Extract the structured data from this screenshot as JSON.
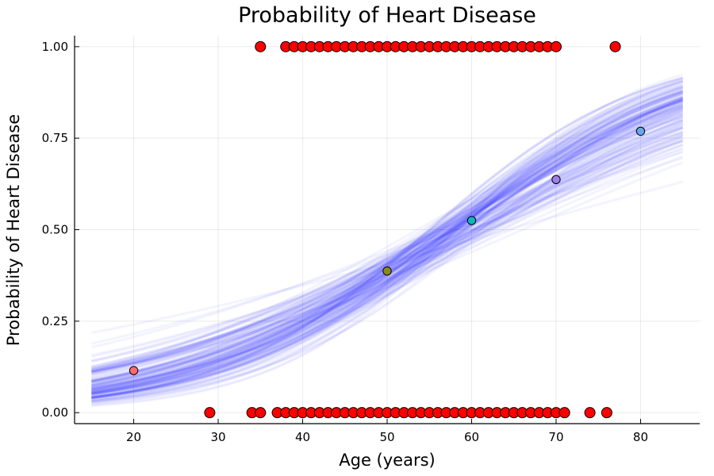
{
  "chart_data": {
    "type": "scatter",
    "title": "Probability of Heart Disease",
    "xlabel": "Age (years)",
    "ylabel": "Probability of Heart Disease",
    "xlim": [
      13,
      87
    ],
    "ylim": [
      -0.03,
      1.03
    ],
    "xticks": [
      20,
      30,
      40,
      50,
      60,
      70,
      80
    ],
    "yticks": [
      0,
      0.25,
      0.5,
      0.75,
      1.0
    ],
    "ytick_labels": [
      "0.00",
      "0.25",
      "0.50",
      "0.75",
      "1.00"
    ],
    "grid": true,
    "legend": "none",
    "posterior_curves": {
      "x_range": [
        15,
        85
      ],
      "center_at_55": 0.45,
      "slope_per_year": 0.06,
      "color": "#0000ff"
    },
    "observations": {
      "color": "#ff0000",
      "outcome_0_ages": [
        29,
        34,
        35,
        37,
        38,
        39,
        40,
        41,
        42,
        43,
        44,
        45,
        46,
        47,
        48,
        49,
        50,
        51,
        52,
        53,
        54,
        55,
        56,
        57,
        58,
        59,
        60,
        61,
        62,
        63,
        64,
        65,
        66,
        67,
        68,
        69,
        70,
        71,
        74,
        76
      ],
      "outcome_1_ages": [
        35,
        38,
        39,
        40,
        41,
        42,
        43,
        44,
        45,
        46,
        47,
        48,
        49,
        50,
        51,
        52,
        53,
        54,
        55,
        56,
        57,
        58,
        59,
        60,
        61,
        62,
        63,
        64,
        65,
        66,
        67,
        68,
        69,
        70,
        77
      ]
    },
    "predictions": [
      {
        "x": 20,
        "y": 0.115,
        "color": "#ff6b6b"
      },
      {
        "x": 50,
        "y": 0.387,
        "color": "#8a8a1f"
      },
      {
        "x": 60,
        "y": 0.525,
        "color": "#13b4c2"
      },
      {
        "x": 70,
        "y": 0.637,
        "color": "#a27ee8"
      },
      {
        "x": 80,
        "y": 0.769,
        "color": "#6aa6e8"
      }
    ]
  }
}
